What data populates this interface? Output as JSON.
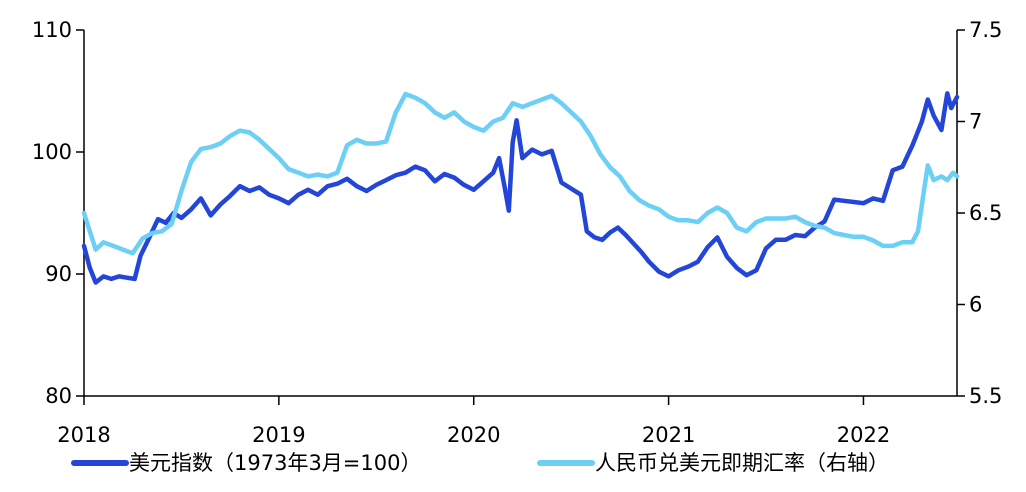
{
  "chart_data": {
    "type": "line",
    "xlabel": "",
    "ylabel": "",
    "x_ticks": [
      "2018",
      "2019",
      "2020",
      "2021",
      "2022"
    ],
    "x_range": [
      2018.0,
      2022.48
    ],
    "y_left": {
      "range": [
        80,
        110
      ],
      "ticks": [
        "110",
        "100",
        "90",
        "80"
      ]
    },
    "y_right": {
      "range": [
        5.5,
        7.5
      ],
      "ticks": [
        "7.5",
        "7",
        "6.5",
        "6",
        "5.5"
      ]
    },
    "grid": false,
    "legend_position": "bottom",
    "series": [
      {
        "name": "美元指数（1973年3月=100）",
        "axis": "left",
        "color": "#2446d8",
        "points": [
          [
            2018.0,
            92.3
          ],
          [
            2018.03,
            90.5
          ],
          [
            2018.06,
            89.3
          ],
          [
            2018.1,
            89.8
          ],
          [
            2018.14,
            89.6
          ],
          [
            2018.18,
            89.8
          ],
          [
            2018.22,
            89.7
          ],
          [
            2018.26,
            89.6
          ],
          [
            2018.29,
            91.5
          ],
          [
            2018.33,
            92.8
          ],
          [
            2018.38,
            94.5
          ],
          [
            2018.42,
            94.2
          ],
          [
            2018.46,
            95.0
          ],
          [
            2018.5,
            94.6
          ],
          [
            2018.55,
            95.3
          ],
          [
            2018.6,
            96.2
          ],
          [
            2018.65,
            94.8
          ],
          [
            2018.7,
            95.7
          ],
          [
            2018.75,
            96.4
          ],
          [
            2018.8,
            97.2
          ],
          [
            2018.85,
            96.8
          ],
          [
            2018.9,
            97.1
          ],
          [
            2018.95,
            96.5
          ],
          [
            2019.0,
            96.2
          ],
          [
            2019.05,
            95.8
          ],
          [
            2019.1,
            96.5
          ],
          [
            2019.15,
            96.9
          ],
          [
            2019.2,
            96.5
          ],
          [
            2019.25,
            97.2
          ],
          [
            2019.3,
            97.4
          ],
          [
            2019.35,
            97.8
          ],
          [
            2019.4,
            97.2
          ],
          [
            2019.45,
            96.8
          ],
          [
            2019.5,
            97.3
          ],
          [
            2019.55,
            97.7
          ],
          [
            2019.6,
            98.1
          ],
          [
            2019.65,
            98.3
          ],
          [
            2019.7,
            98.8
          ],
          [
            2019.75,
            98.5
          ],
          [
            2019.8,
            97.6
          ],
          [
            2019.85,
            98.2
          ],
          [
            2019.9,
            97.9
          ],
          [
            2019.95,
            97.3
          ],
          [
            2020.0,
            96.9
          ],
          [
            2020.05,
            97.6
          ],
          [
            2020.1,
            98.3
          ],
          [
            2020.13,
            99.5
          ],
          [
            2020.16,
            97.0
          ],
          [
            2020.18,
            95.2
          ],
          [
            2020.2,
            100.8
          ],
          [
            2020.22,
            102.6
          ],
          [
            2020.25,
            99.5
          ],
          [
            2020.3,
            100.2
          ],
          [
            2020.35,
            99.8
          ],
          [
            2020.4,
            100.1
          ],
          [
            2020.45,
            97.5
          ],
          [
            2020.5,
            97.0
          ],
          [
            2020.55,
            96.5
          ],
          [
            2020.58,
            93.5
          ],
          [
            2020.62,
            93.0
          ],
          [
            2020.66,
            92.8
          ],
          [
            2020.7,
            93.4
          ],
          [
            2020.74,
            93.8
          ],
          [
            2020.78,
            93.2
          ],
          [
            2020.82,
            92.5
          ],
          [
            2020.86,
            91.8
          ],
          [
            2020.9,
            91.0
          ],
          [
            2020.95,
            90.2
          ],
          [
            2021.0,
            89.8
          ],
          [
            2021.05,
            90.3
          ],
          [
            2021.1,
            90.6
          ],
          [
            2021.15,
            91.0
          ],
          [
            2021.2,
            92.2
          ],
          [
            2021.25,
            93.0
          ],
          [
            2021.3,
            91.4
          ],
          [
            2021.35,
            90.5
          ],
          [
            2021.4,
            89.9
          ],
          [
            2021.45,
            90.3
          ],
          [
            2021.5,
            92.1
          ],
          [
            2021.55,
            92.8
          ],
          [
            2021.6,
            92.8
          ],
          [
            2021.65,
            93.2
          ],
          [
            2021.7,
            93.1
          ],
          [
            2021.75,
            93.8
          ],
          [
            2021.8,
            94.3
          ],
          [
            2021.85,
            96.1
          ],
          [
            2021.9,
            96.0
          ],
          [
            2021.95,
            95.9
          ],
          [
            2022.0,
            95.8
          ],
          [
            2022.05,
            96.2
          ],
          [
            2022.1,
            96.0
          ],
          [
            2022.15,
            98.5
          ],
          [
            2022.2,
            98.8
          ],
          [
            2022.25,
            100.5
          ],
          [
            2022.3,
            102.5
          ],
          [
            2022.33,
            104.3
          ],
          [
            2022.36,
            103.0
          ],
          [
            2022.4,
            101.8
          ],
          [
            2022.43,
            104.8
          ],
          [
            2022.45,
            103.6
          ],
          [
            2022.48,
            104.5
          ]
        ]
      },
      {
        "name": "人民币兑美元即期汇率（右轴）",
        "axis": "right",
        "color": "#6ccff6",
        "points": [
          [
            2018.0,
            6.5
          ],
          [
            2018.03,
            6.4
          ],
          [
            2018.06,
            6.3
          ],
          [
            2018.1,
            6.34
          ],
          [
            2018.15,
            6.32
          ],
          [
            2018.2,
            6.3
          ],
          [
            2018.25,
            6.28
          ],
          [
            2018.3,
            6.36
          ],
          [
            2018.35,
            6.39
          ],
          [
            2018.4,
            6.4
          ],
          [
            2018.45,
            6.44
          ],
          [
            2018.5,
            6.62
          ],
          [
            2018.55,
            6.78
          ],
          [
            2018.6,
            6.85
          ],
          [
            2018.65,
            6.86
          ],
          [
            2018.7,
            6.88
          ],
          [
            2018.75,
            6.92
          ],
          [
            2018.8,
            6.95
          ],
          [
            2018.85,
            6.94
          ],
          [
            2018.9,
            6.9
          ],
          [
            2019.0,
            6.8
          ],
          [
            2019.05,
            6.74
          ],
          [
            2019.1,
            6.72
          ],
          [
            2019.15,
            6.7
          ],
          [
            2019.2,
            6.71
          ],
          [
            2019.25,
            6.7
          ],
          [
            2019.3,
            6.72
          ],
          [
            2019.35,
            6.87
          ],
          [
            2019.4,
            6.9
          ],
          [
            2019.45,
            6.88
          ],
          [
            2019.5,
            6.88
          ],
          [
            2019.55,
            6.89
          ],
          [
            2019.6,
            7.05
          ],
          [
            2019.65,
            7.15
          ],
          [
            2019.7,
            7.13
          ],
          [
            2019.75,
            7.1
          ],
          [
            2019.8,
            7.05
          ],
          [
            2019.85,
            7.02
          ],
          [
            2019.9,
            7.05
          ],
          [
            2019.95,
            7.0
          ],
          [
            2020.0,
            6.97
          ],
          [
            2020.05,
            6.95
          ],
          [
            2020.1,
            7.0
          ],
          [
            2020.15,
            7.02
          ],
          [
            2020.2,
            7.1
          ],
          [
            2020.25,
            7.08
          ],
          [
            2020.3,
            7.1
          ],
          [
            2020.35,
            7.12
          ],
          [
            2020.4,
            7.14
          ],
          [
            2020.45,
            7.1
          ],
          [
            2020.5,
            7.05
          ],
          [
            2020.55,
            7.0
          ],
          [
            2020.6,
            6.92
          ],
          [
            2020.65,
            6.82
          ],
          [
            2020.7,
            6.75
          ],
          [
            2020.75,
            6.7
          ],
          [
            2020.8,
            6.62
          ],
          [
            2020.85,
            6.57
          ],
          [
            2020.9,
            6.54
          ],
          [
            2020.95,
            6.52
          ],
          [
            2021.0,
            6.48
          ],
          [
            2021.05,
            6.46
          ],
          [
            2021.1,
            6.46
          ],
          [
            2021.15,
            6.45
          ],
          [
            2021.2,
            6.5
          ],
          [
            2021.25,
            6.53
          ],
          [
            2021.3,
            6.5
          ],
          [
            2021.35,
            6.42
          ],
          [
            2021.4,
            6.4
          ],
          [
            2021.45,
            6.45
          ],
          [
            2021.5,
            6.47
          ],
          [
            2021.55,
            6.47
          ],
          [
            2021.6,
            6.47
          ],
          [
            2021.65,
            6.48
          ],
          [
            2021.7,
            6.45
          ],
          [
            2021.75,
            6.43
          ],
          [
            2021.8,
            6.42
          ],
          [
            2021.85,
            6.39
          ],
          [
            2021.9,
            6.38
          ],
          [
            2021.95,
            6.37
          ],
          [
            2022.0,
            6.37
          ],
          [
            2022.05,
            6.35
          ],
          [
            2022.1,
            6.32
          ],
          [
            2022.15,
            6.32
          ],
          [
            2022.2,
            6.34
          ],
          [
            2022.25,
            6.34
          ],
          [
            2022.28,
            6.4
          ],
          [
            2022.31,
            6.62
          ],
          [
            2022.33,
            6.76
          ],
          [
            2022.36,
            6.68
          ],
          [
            2022.4,
            6.7
          ],
          [
            2022.43,
            6.68
          ],
          [
            2022.46,
            6.72
          ],
          [
            2022.48,
            6.7
          ]
        ]
      }
    ]
  }
}
